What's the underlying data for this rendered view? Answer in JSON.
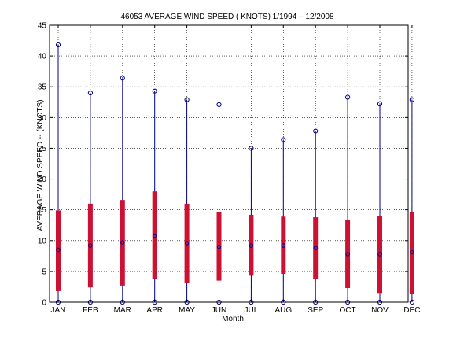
{
  "chart_data": {
    "type": "box",
    "title": "46053  AVERAGE WIND SPEED ( KNOTS) 1/1994 – 12/2008",
    "xlabel": "Month",
    "ylabel": "AVERAGE WIND SPEED -- (KNOTS)",
    "ylim": [
      0,
      45
    ],
    "yticks": [
      0,
      5,
      10,
      15,
      20,
      25,
      30,
      35,
      40,
      45
    ],
    "grid": true,
    "categories": [
      "JAN",
      "FEB",
      "MAR",
      "APR",
      "MAY",
      "JUN",
      "JUL",
      "AUG",
      "SEP",
      "OCT",
      "NOV",
      "DEC"
    ],
    "min": [
      0,
      0,
      0,
      0,
      0,
      0,
      0,
      0,
      0,
      0,
      0,
      0
    ],
    "max": [
      41.8,
      34.0,
      36.4,
      34.3,
      32.9,
      32.1,
      25.0,
      26.4,
      27.8,
      33.3,
      32.2,
      32.9
    ],
    "q1": [
      1.8,
      2.4,
      2.7,
      3.8,
      3.1,
      3.5,
      4.3,
      4.6,
      3.8,
      2.3,
      1.5,
      1.3
    ],
    "q3": [
      14.9,
      16.0,
      16.6,
      18.0,
      16.0,
      14.6,
      14.2,
      13.9,
      13.8,
      13.4,
      14.0,
      14.6
    ],
    "mean": [
      8.5,
      9.2,
      9.7,
      10.8,
      9.6,
      9.0,
      9.2,
      9.2,
      8.8,
      7.8,
      7.8,
      8.1
    ],
    "colors": {
      "whisker": "#00008b",
      "box": "#cc1133",
      "marker": "#00008b"
    }
  }
}
